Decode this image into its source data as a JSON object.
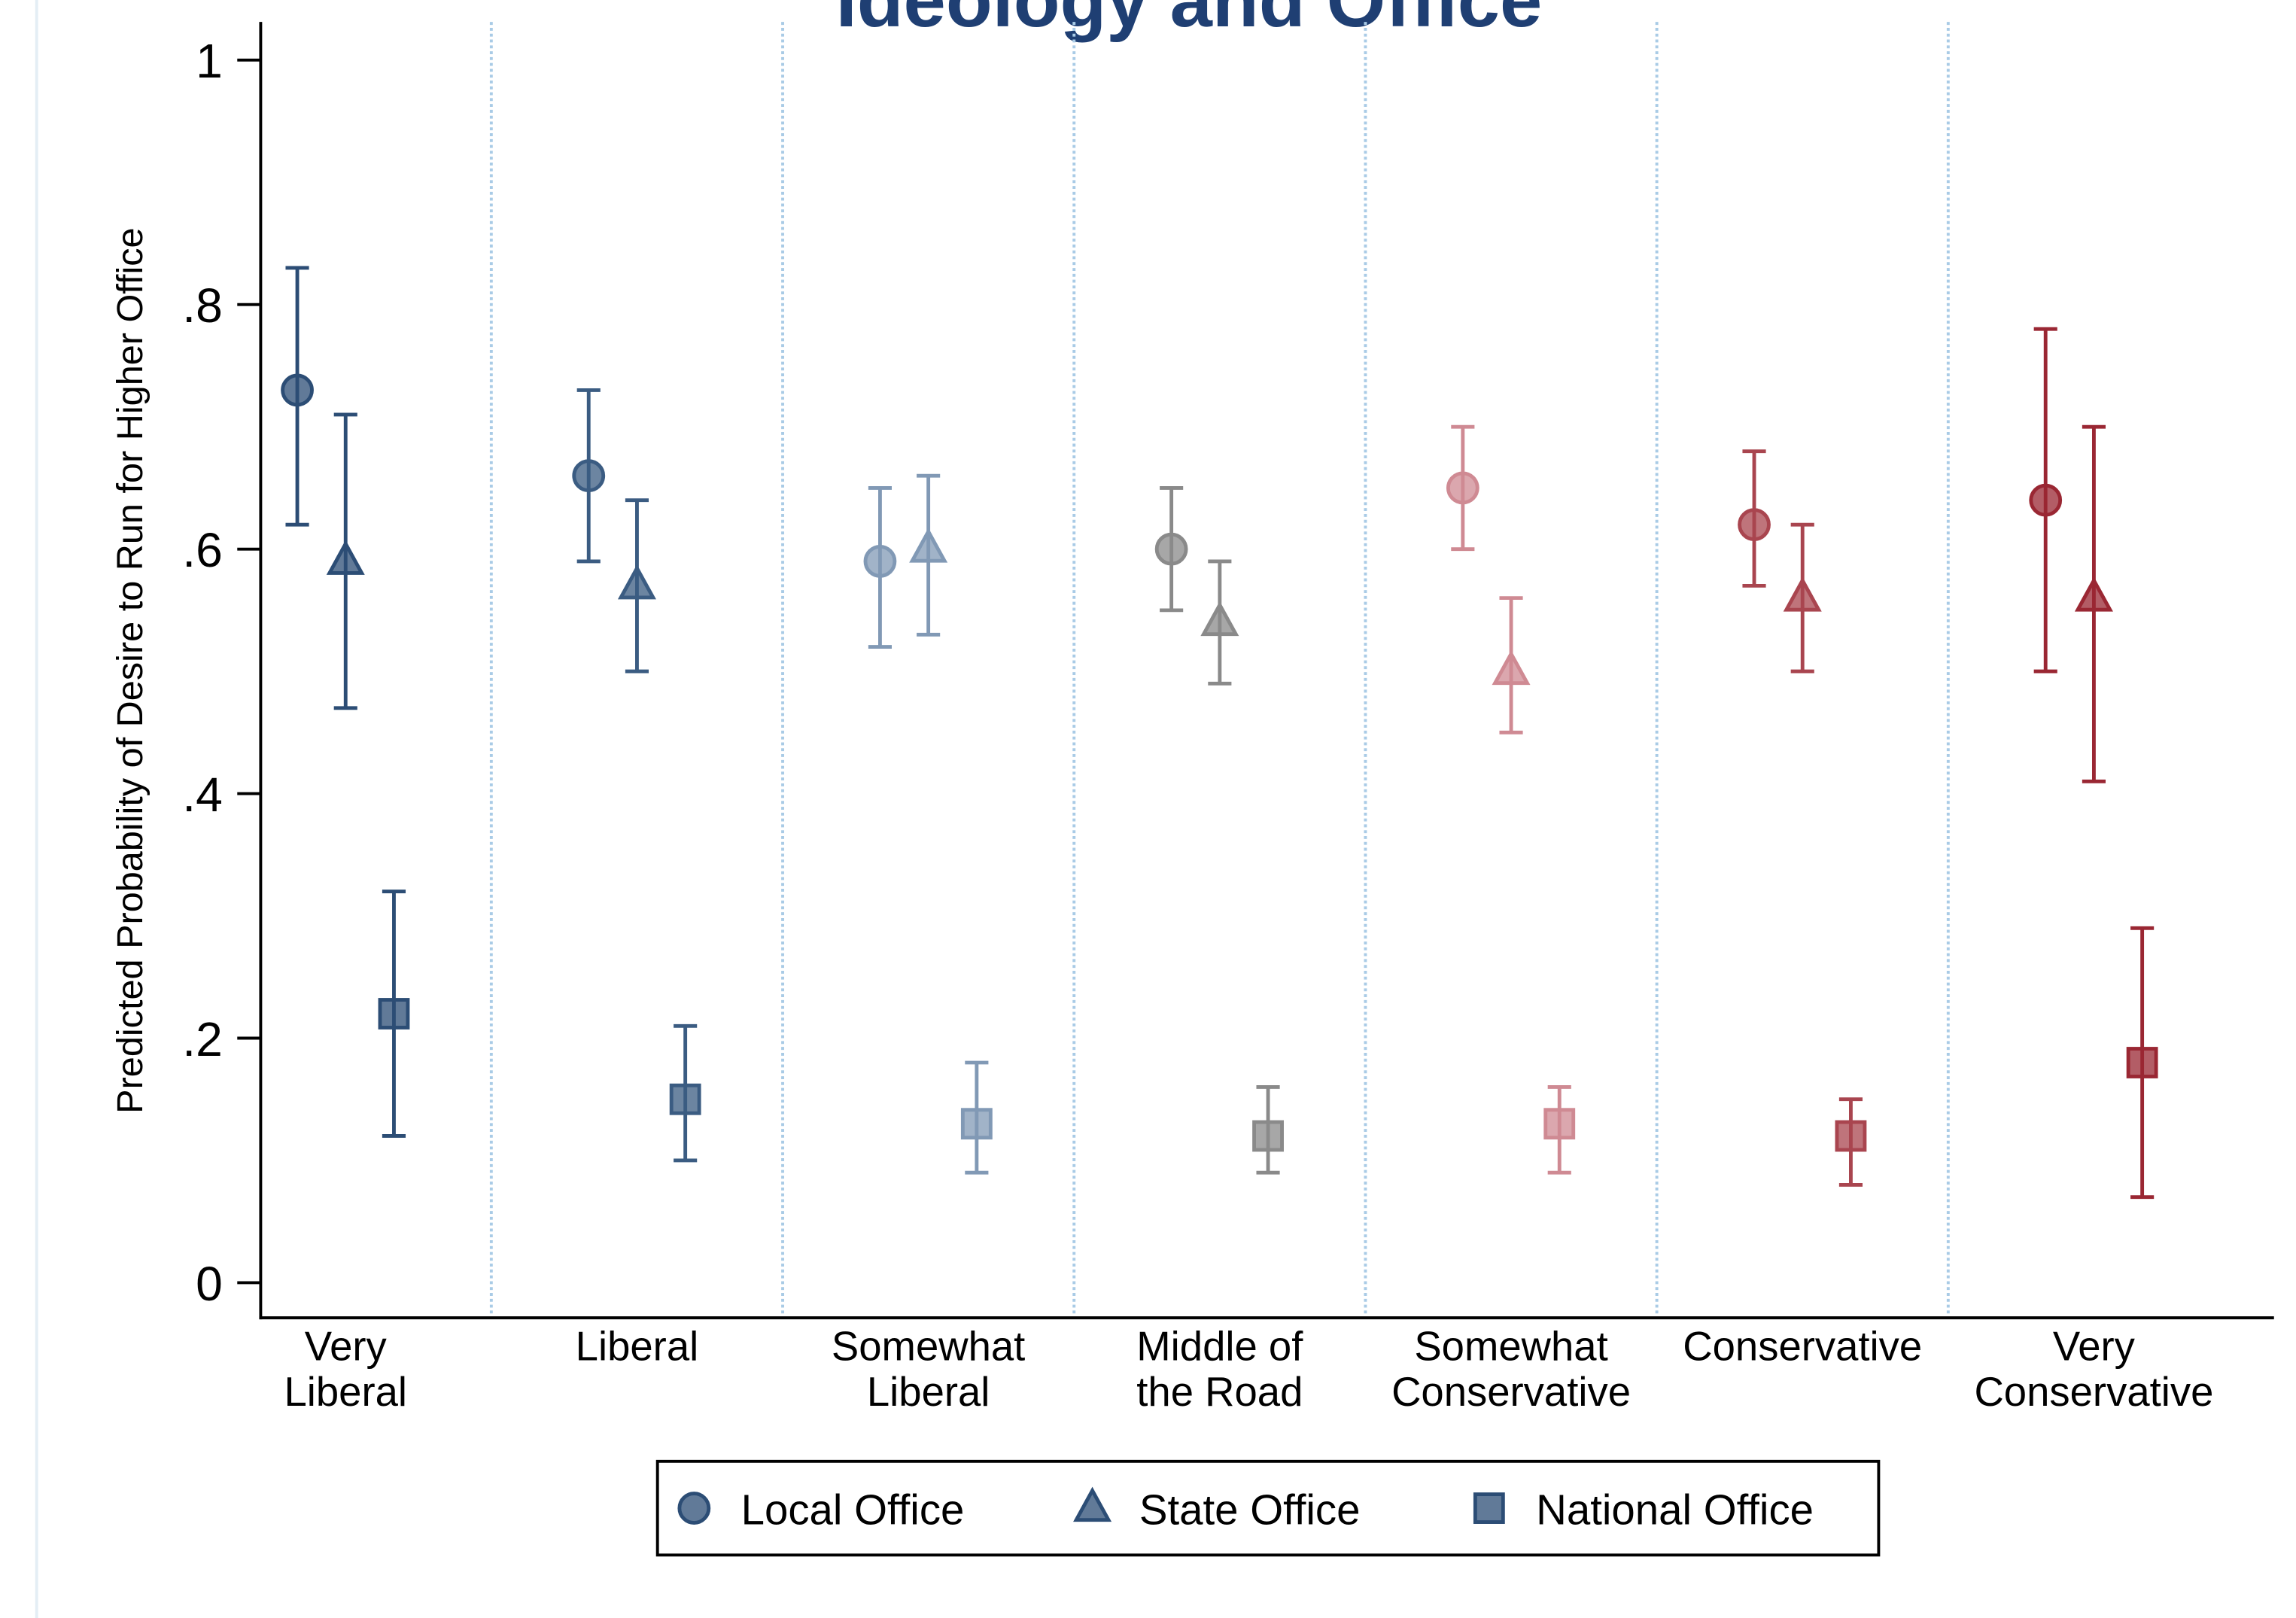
{
  "chart_data": {
    "type": "errorbar",
    "title": "Ideology and Office",
    "ylabel": "Predicted Probability of Desire to Run for Higher Office",
    "categories": [
      "Very\nLiberal",
      "Liberal",
      "Somewhat\nLiberal",
      "Middle of\nthe Road",
      "Somewhat\nConservative",
      "Conservative",
      "Very\nConservative"
    ],
    "category_colors": [
      "#2c4d75",
      "#3b5c82",
      "#8199b5",
      "#8a8a8a",
      "#cf8a93",
      "#a9454f",
      "#9a2733"
    ],
    "series": [
      {
        "name": "Local Office",
        "color": "#2c4d75",
        "marker": "circle",
        "values": [
          0.73,
          0.66,
          0.59,
          0.6,
          0.65,
          0.62,
          0.64
        ],
        "lower": [
          0.62,
          0.59,
          0.52,
          0.55,
          0.6,
          0.57,
          0.5
        ],
        "upper": [
          0.83,
          0.73,
          0.65,
          0.65,
          0.7,
          0.68,
          0.78
        ]
      },
      {
        "name": "State Office",
        "color": "#2c4d75",
        "marker": "triangle",
        "values": [
          0.59,
          0.57,
          0.6,
          0.54,
          0.5,
          0.56,
          0.56
        ],
        "lower": [
          0.47,
          0.5,
          0.53,
          0.49,
          0.45,
          0.5,
          0.41
        ],
        "upper": [
          0.71,
          0.64,
          0.66,
          0.59,
          0.56,
          0.62,
          0.7
        ]
      },
      {
        "name": "National Office",
        "color": "#2c4d75",
        "marker": "square",
        "values": [
          0.22,
          0.15,
          0.13,
          0.12,
          0.13,
          0.12,
          0.18
        ],
        "lower": [
          0.12,
          0.1,
          0.09,
          0.09,
          0.09,
          0.08,
          0.07
        ],
        "upper": [
          0.32,
          0.21,
          0.18,
          0.16,
          0.16,
          0.15,
          0.29
        ]
      }
    ],
    "ylim": [
      0,
      1
    ],
    "yticks": [
      0,
      {
        "value": 0.2,
        "label": ".2"
      },
      {
        "value": 0.4,
        "label": ".4"
      },
      {
        "value": 0.6,
        "label": ".6"
      },
      {
        "value": 0.8,
        "label": ".8"
      },
      1
    ],
    "legend": "bottom"
  }
}
